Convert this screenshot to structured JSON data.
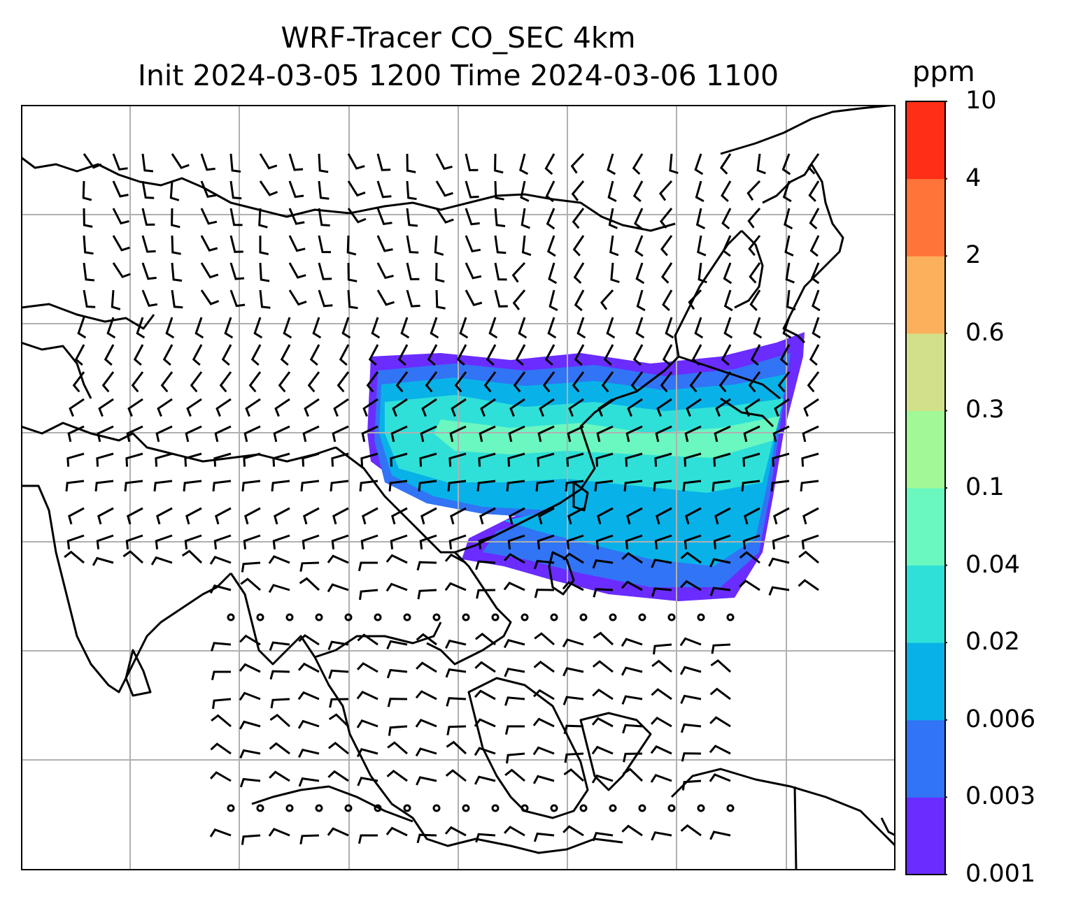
{
  "title": {
    "line1": "WRF-Tracer CO_SEC 4km",
    "line2": "Init 2024-03-05 1200 Time 2024-03-06 1100"
  },
  "colorbar": {
    "unit": "ppm",
    "ticks": [
      "0.001",
      "0.003",
      "0.006",
      "0.02",
      "0.04",
      "0.1",
      "0.3",
      "0.6",
      "2",
      "4",
      "10"
    ],
    "colors": [
      "#6a2cff",
      "#3174f5",
      "#08b2e8",
      "#2fe0d8",
      "#6af7c0",
      "#a2f896",
      "#d2e08a",
      "#fdb05c",
      "#ff7438",
      "#ff2f17"
    ]
  },
  "map": {
    "field": "CO_SEC",
    "projection": "lat-lon grid",
    "gridlines": true,
    "wind_barbs": true
  }
}
